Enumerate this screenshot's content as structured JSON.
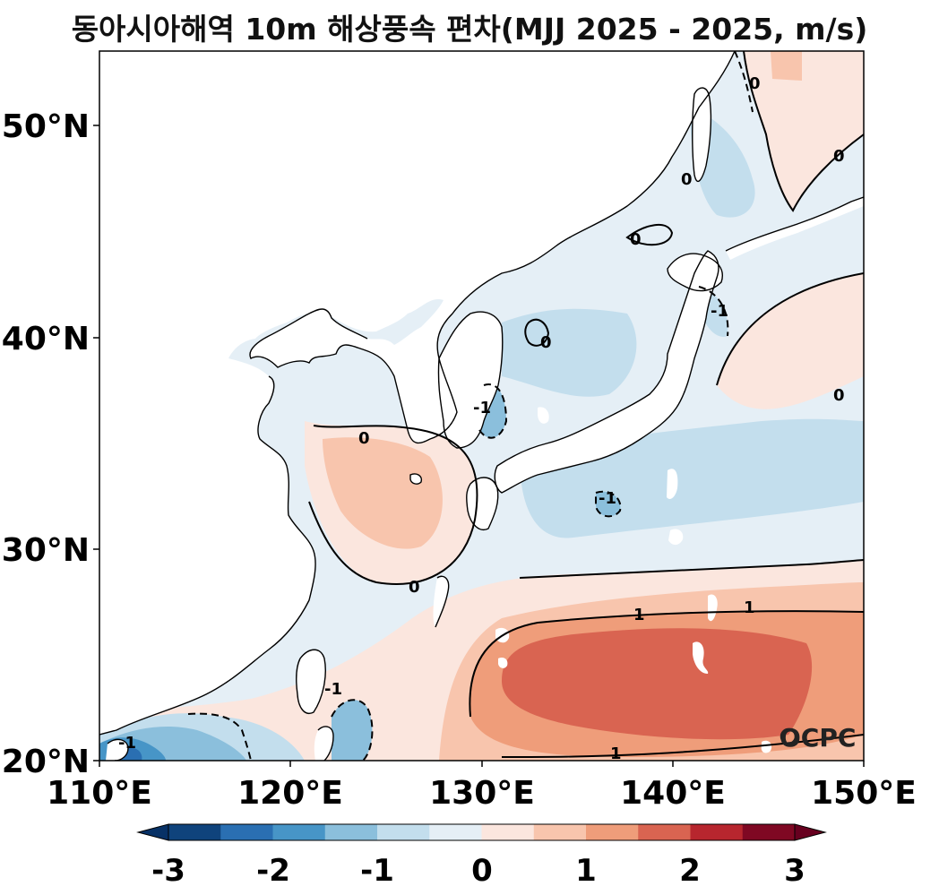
{
  "title": "동아시아해역 10m 해상풍속 편차(MJJ 2025 - 2025, m/s)",
  "logo_text": "OCPC",
  "map": {
    "lat_labels": [
      "20°N",
      "30°N",
      "40°N",
      "50°N"
    ],
    "lon_labels": [
      "110°E",
      "120°E",
      "130°E",
      "140°E",
      "150°E"
    ],
    "lon_range": [
      110,
      150
    ],
    "lat_range": [
      20,
      53.5
    ],
    "contour_labels": [
      "0",
      "0",
      "0",
      "0",
      "0",
      "0",
      "0",
      "0",
      "1",
      "1",
      "1",
      "-1",
      "-1",
      "-1",
      "-1",
      "-1"
    ]
  },
  "colorbar": {
    "tick_labels": [
      "-3",
      "-2",
      "-1",
      "0",
      "1",
      "2",
      "3"
    ],
    "colors": [
      "#0f437c",
      "#2a6fb2",
      "#4795c7",
      "#8bbfdc",
      "#c3deed",
      "#e5eff6",
      "#fbe6de",
      "#f8c5ad",
      "#ef9d7a",
      "#d96451",
      "#b7262e",
      "#7f0823"
    ],
    "under_color": "#073166",
    "over_color": "#67001f"
  }
}
